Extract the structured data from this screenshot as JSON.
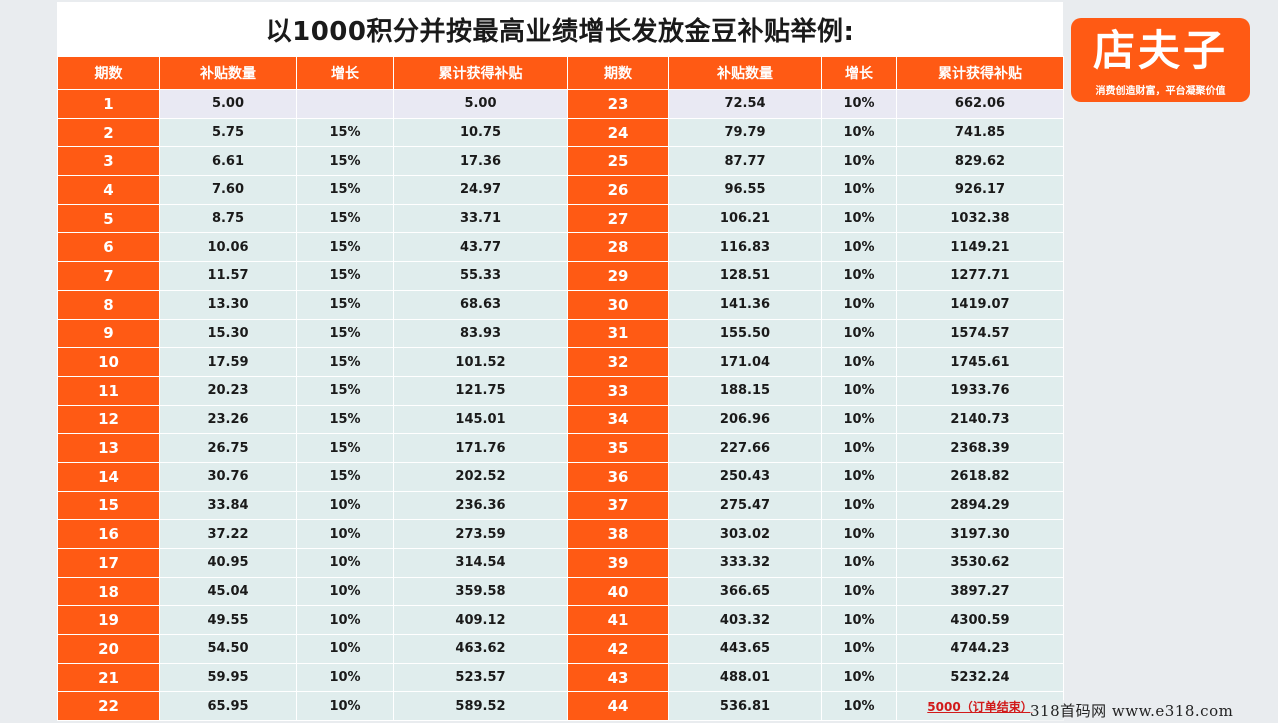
{
  "title": "以1000积分并按最高业绩增长发放金豆补贴举例:",
  "headers": [
    "期数",
    "补贴数量",
    "增长",
    "累计获得补贴",
    "期数",
    "补贴数量",
    "增长",
    "累计获得补贴"
  ],
  "rows": [
    {
      "left": [
        "1",
        "5.00",
        "",
        "5.00"
      ],
      "right": [
        "23",
        "72.54",
        "10%",
        "662.06"
      ]
    },
    {
      "left": [
        "2",
        "5.75",
        "15%",
        "10.75"
      ],
      "right": [
        "24",
        "79.79",
        "10%",
        "741.85"
      ]
    },
    {
      "left": [
        "3",
        "6.61",
        "15%",
        "17.36"
      ],
      "right": [
        "25",
        "87.77",
        "10%",
        "829.62"
      ]
    },
    {
      "left": [
        "4",
        "7.60",
        "15%",
        "24.97"
      ],
      "right": [
        "26",
        "96.55",
        "10%",
        "926.17"
      ]
    },
    {
      "left": [
        "5",
        "8.75",
        "15%",
        "33.71"
      ],
      "right": [
        "27",
        "106.21",
        "10%",
        "1032.38"
      ]
    },
    {
      "left": [
        "6",
        "10.06",
        "15%",
        "43.77"
      ],
      "right": [
        "28",
        "116.83",
        "10%",
        "1149.21"
      ]
    },
    {
      "left": [
        "7",
        "11.57",
        "15%",
        "55.33"
      ],
      "right": [
        "29",
        "128.51",
        "10%",
        "1277.71"
      ]
    },
    {
      "left": [
        "8",
        "13.30",
        "15%",
        "68.63"
      ],
      "right": [
        "30",
        "141.36",
        "10%",
        "1419.07"
      ]
    },
    {
      "left": [
        "9",
        "15.30",
        "15%",
        "83.93"
      ],
      "right": [
        "31",
        "155.50",
        "10%",
        "1574.57"
      ]
    },
    {
      "left": [
        "10",
        "17.59",
        "15%",
        "101.52"
      ],
      "right": [
        "32",
        "171.04",
        "10%",
        "1745.61"
      ]
    },
    {
      "left": [
        "11",
        "20.23",
        "15%",
        "121.75"
      ],
      "right": [
        "33",
        "188.15",
        "10%",
        "1933.76"
      ]
    },
    {
      "left": [
        "12",
        "23.26",
        "15%",
        "145.01"
      ],
      "right": [
        "34",
        "206.96",
        "10%",
        "2140.73"
      ]
    },
    {
      "left": [
        "13",
        "26.75",
        "15%",
        "171.76"
      ],
      "right": [
        "35",
        "227.66",
        "10%",
        "2368.39"
      ]
    },
    {
      "left": [
        "14",
        "30.76",
        "15%",
        "202.52"
      ],
      "right": [
        "36",
        "250.43",
        "10%",
        "2618.82"
      ]
    },
    {
      "left": [
        "15",
        "33.84",
        "10%",
        "236.36"
      ],
      "right": [
        "37",
        "275.47",
        "10%",
        "2894.29"
      ]
    },
    {
      "left": [
        "16",
        "37.22",
        "10%",
        "273.59"
      ],
      "right": [
        "38",
        "303.02",
        "10%",
        "3197.30"
      ]
    },
    {
      "left": [
        "17",
        "40.95",
        "10%",
        "314.54"
      ],
      "right": [
        "39",
        "333.32",
        "10%",
        "3530.62"
      ]
    },
    {
      "left": [
        "18",
        "45.04",
        "10%",
        "359.58"
      ],
      "right": [
        "40",
        "366.65",
        "10%",
        "3897.27"
      ]
    },
    {
      "left": [
        "19",
        "49.55",
        "10%",
        "409.12"
      ],
      "right": [
        "41",
        "403.32",
        "10%",
        "4300.59"
      ]
    },
    {
      "left": [
        "20",
        "54.50",
        "10%",
        "463.62"
      ],
      "right": [
        "42",
        "443.65",
        "10%",
        "4744.23"
      ]
    },
    {
      "left": [
        "21",
        "59.95",
        "10%",
        "523.57"
      ],
      "right": [
        "43",
        "488.01",
        "10%",
        "5232.24"
      ]
    },
    {
      "left": [
        "22",
        "65.95",
        "10%",
        "589.52"
      ],
      "right": [
        "44",
        "536.81",
        "10%",
        "5000（订单结束）"
      ]
    }
  ],
  "logo": {
    "title": "店夫子",
    "slogan": "消费创造财富，平台凝聚价值"
  },
  "watermark": "318首码网   www.e318.com",
  "colors": {
    "accent": "#ff5a14",
    "cell_bg": "#e0eded",
    "first_row_bg": "#e9e9f3",
    "end_note": "#d11a1a"
  }
}
